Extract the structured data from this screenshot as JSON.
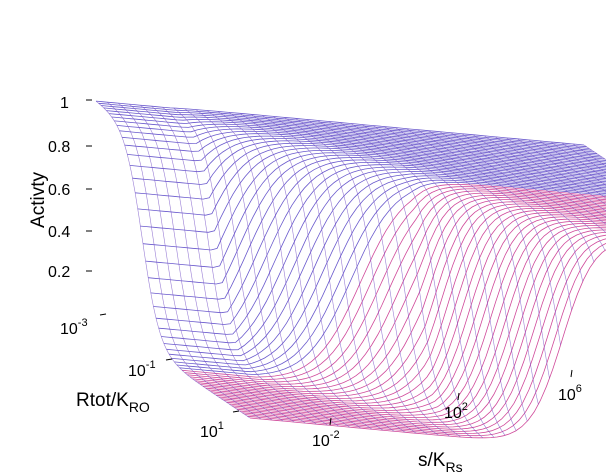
{
  "chart_data": {
    "type": "surface",
    "zlabel": "Activty",
    "ylabel": {
      "main": "Rtot/K",
      "sub": "RO"
    },
    "xlabel": {
      "main": "s/K",
      "sub": "Rs"
    },
    "z_ticks": [
      "1",
      "0.8",
      "0.6",
      "0.4",
      "0.2"
    ],
    "z_range": [
      0,
      1
    ],
    "y_ticks": [
      {
        "base": "10",
        "exp": "-3"
      },
      {
        "base": "10",
        "exp": "-1"
      },
      {
        "base": "10",
        "exp": "1"
      }
    ],
    "x_ticks": [
      {
        "base": "10",
        "exp": "-2"
      },
      {
        "base": "10",
        "exp": "2"
      },
      {
        "base": "10",
        "exp": "6"
      }
    ],
    "x_log_range": [
      -3,
      7
    ],
    "y_log_range": [
      -3,
      2
    ],
    "grid": false,
    "colors": {
      "ridge": "#ff1493",
      "high": "#6a5acd",
      "mid": "#4b4bd8",
      "mesh": "#7a55c8",
      "pink": "#d04a9a"
    },
    "description_values": {
      "plateau_activity": 1.0,
      "low_s_activity_small_R": 1.0,
      "low_s_activity_large_R": 0.0,
      "high_s_activity_large_R": 1.0
    }
  }
}
